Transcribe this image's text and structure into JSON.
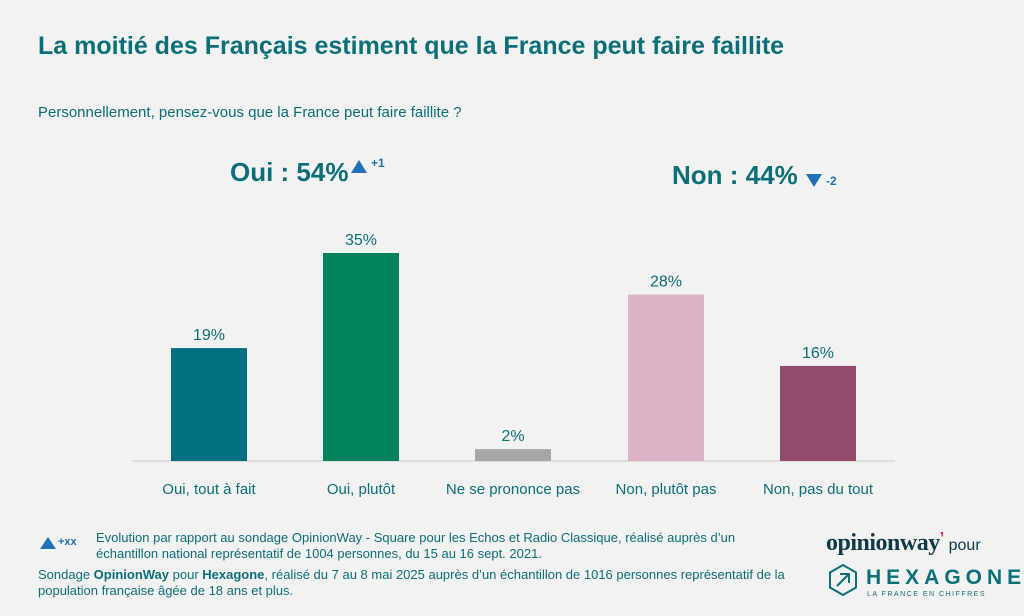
{
  "title": "La moitié des Français estiment que la France peut faire faillite",
  "subtitle": "Personnellement, pensez-vous que la France peut faire faillite ?",
  "summary": {
    "oui": {
      "label": "Oui : 54%",
      "delta": "+1",
      "direction": "up"
    },
    "non": {
      "label": "Non : 44%",
      "delta": "-2",
      "direction": "down"
    }
  },
  "chart_data": {
    "type": "bar",
    "categories": [
      "Oui, tout à fait",
      "Oui, plutôt",
      "Ne se prononce pas",
      "Non, plutôt pas",
      "Non, pas du tout"
    ],
    "values": [
      19,
      35,
      2,
      28,
      16
    ],
    "value_labels": [
      "19%",
      "35%",
      "2%",
      "28%",
      "16%"
    ],
    "colors": [
      "#006f80",
      "#00825d",
      "#a6a6a6",
      "#dbb4c7",
      "#944a6d"
    ],
    "ylim": [
      0,
      35
    ],
    "grid": false
  },
  "legend_note": {
    "symbol": "+xx",
    "text": "Evolution par rapport au sondage OpinionWay - Square pour les Echos et Radio Classique, réalisé auprès d’un échantillon national représentatif de 1004 personnes, du 15 au 16 sept. 2021."
  },
  "source_note": {
    "prefix": "Sondage ",
    "brand1": "OpinionWay",
    "middle": " pour ",
    "brand2": "Hexagone",
    "suffix": ", réalisé du 7 au 8 mai 2025 auprès d’un échantillon de 1016 personnes représentatif de la population française âgée de 18 ans et plus."
  },
  "logos": {
    "opinionway": "opinionway",
    "pour": "pour",
    "hexagone": "HEXAGONE",
    "hexagone_tagline": "LA FRANCE EN CHIFFRES"
  },
  "colors": {
    "accent": "#0b6f79",
    "arrow": "#1f70b8"
  }
}
